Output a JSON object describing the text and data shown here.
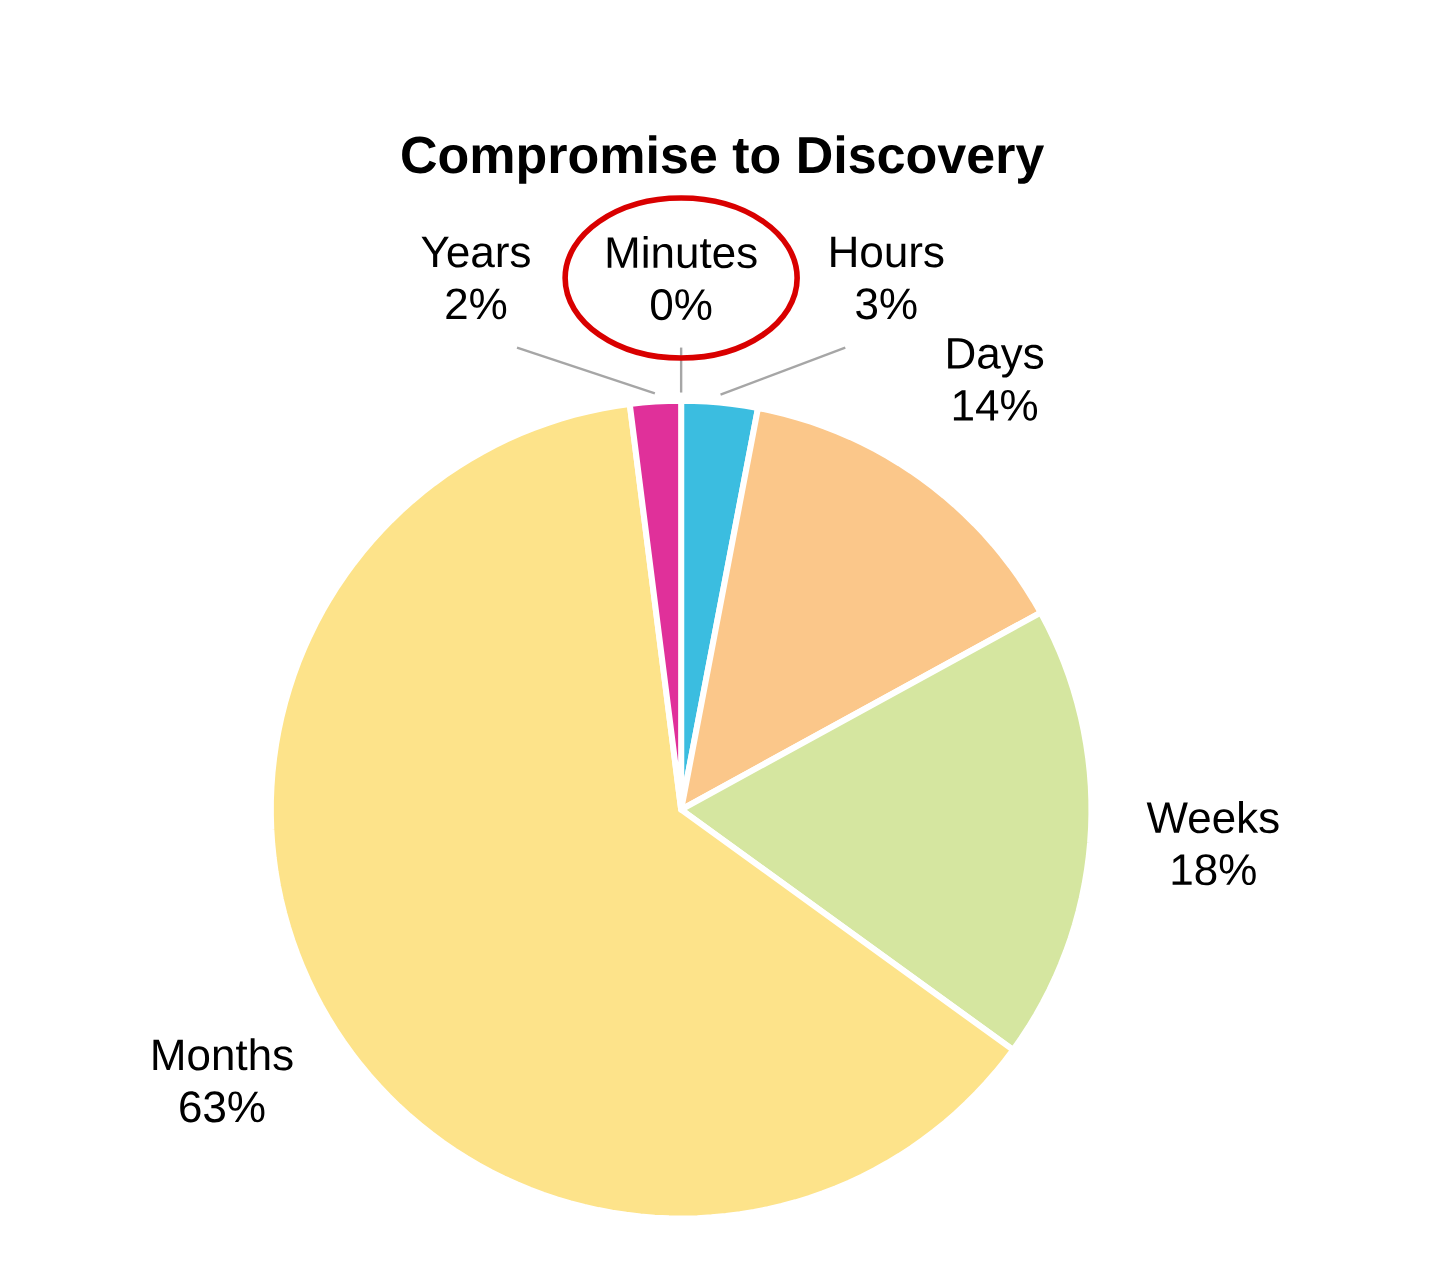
{
  "chart_data": {
    "type": "pie",
    "title": "Compromise to Discovery",
    "categories": [
      "Minutes",
      "Hours",
      "Days",
      "Weeks",
      "Months",
      "Years"
    ],
    "values": [
      0,
      3,
      14,
      18,
      63,
      2
    ],
    "value_labels": [
      "0%",
      "3%",
      "14%",
      "18%",
      "63%",
      "2%"
    ],
    "colors": [
      "#e03030",
      "#3bbde0",
      "#fbc78a",
      "#d5e6a0",
      "#fde38a",
      "#e0309a"
    ]
  }
}
